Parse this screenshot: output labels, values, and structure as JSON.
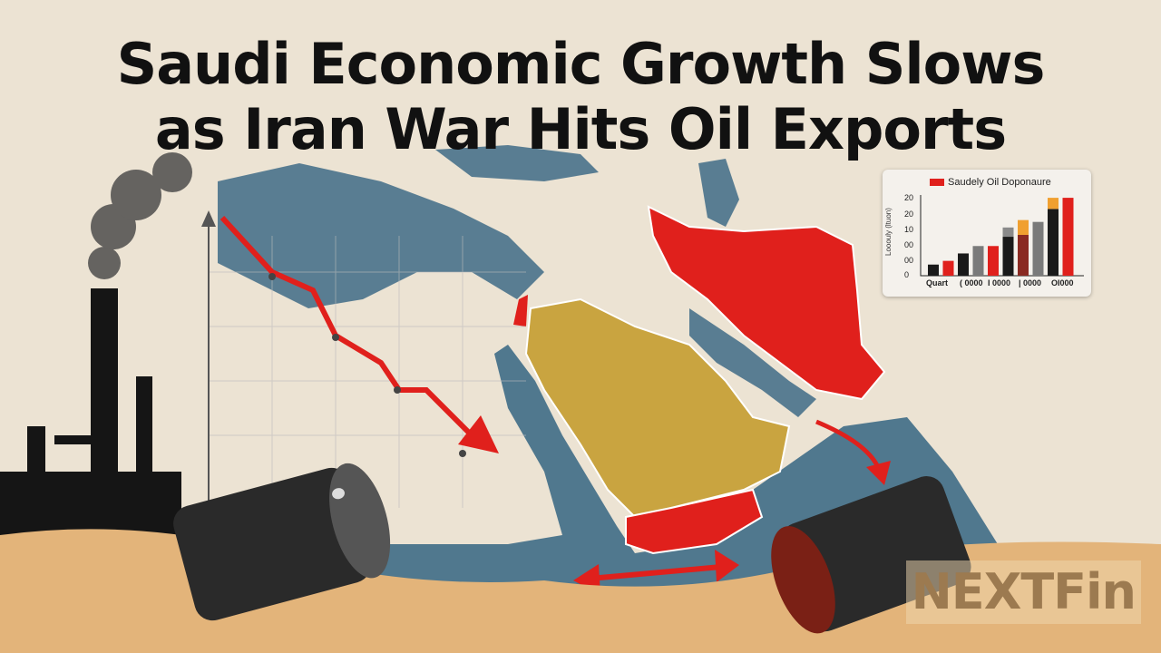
{
  "headline": {
    "line1": "Saudi Economic Growth Slows",
    "line2": "as Iran War Hits Oil Exports"
  },
  "inset_chart": {
    "legend": "Saudely Oil Doponaure",
    "ylabel": "Looouly (ltuon)",
    "yticks": [
      "0",
      "00",
      "00",
      "10",
      "20",
      "20"
    ],
    "xticks": [
      "Quart",
      "( 0000",
      "I 0000",
      "| 0000",
      "OI000"
    ],
    "bars": [
      {
        "value": 3,
        "color": "#1a1a1a"
      },
      {
        "value": 4,
        "color": "#e0201c"
      },
      {
        "value": 6,
        "color": "#1a1a1a"
      },
      {
        "value": 8,
        "color": "#7a7a7a"
      },
      {
        "value": 8,
        "color": "#e0201c"
      },
      {
        "value": 10.5,
        "color": "#1a1a1a",
        "top": 2.5,
        "top_color": "#8a8a8a"
      },
      {
        "value": 11,
        "color": "#8a2a22",
        "top": 4,
        "top_color": "#f0a030"
      },
      {
        "value": 14.5,
        "color": "#7a7a7a"
      },
      {
        "value": 18,
        "color": "#1a1a1a",
        "top": 3,
        "top_color": "#f0a030"
      },
      {
        "value": 21,
        "color": "#e0201c"
      }
    ]
  },
  "watermark": "NEXTFin",
  "colors": {
    "background": "#ece3d3",
    "sea": "#3f6b86",
    "saudi": "#c9a440",
    "iran": "#e0201c",
    "sand": "#e3b47a",
    "arrow": "#e0201c"
  }
}
